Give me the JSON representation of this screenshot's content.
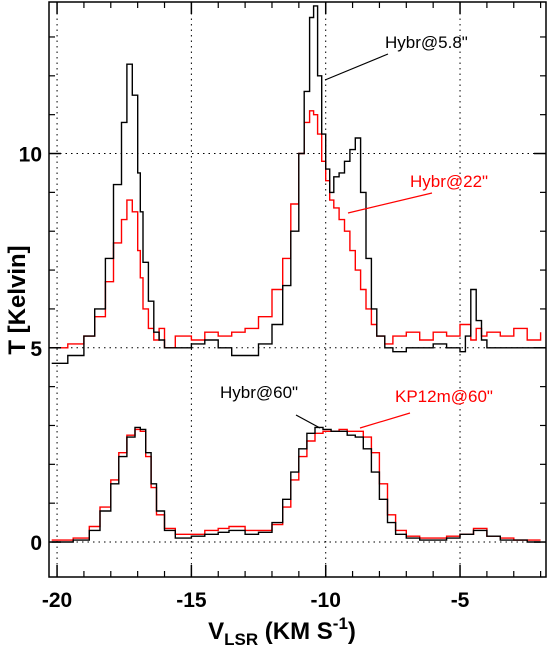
{
  "chart_data": {
    "type": "line",
    "title": "",
    "xlabel": {
      "main": "V",
      "sub": "LSR",
      "rest": " (KM S",
      "sup": "-1",
      "close": ")"
    },
    "ylabel": "T [Kelvin]",
    "xlim": [
      -20.3,
      -1.8
    ],
    "ylim": [
      -0.9,
      13.9
    ],
    "x_ticks": [
      -20,
      -15,
      -10,
      -5
    ],
    "x_tick_labels": [
      "-20",
      "-15",
      "-10",
      "-5"
    ],
    "y_ticks": [
      0,
      5,
      10
    ],
    "y_tick_labels": [
      "0",
      "5",
      "10"
    ],
    "grid": "dotted",
    "plot_style": "step",
    "annotations": [
      {
        "text": "Hybr@5.8\"",
        "color": "#000000"
      },
      {
        "text": "Hybr@22\"",
        "color": "#ff0000"
      },
      {
        "text": "Hybr@60\"",
        "color": "#000000"
      },
      {
        "text": "KP12m@60\"",
        "color": "#ff0000"
      }
    ],
    "series": [
      {
        "color": "#000000",
        "x": [
          -20.2,
          -19.6,
          -19.0,
          -18.6,
          -18.2,
          -17.9,
          -17.6,
          -17.4,
          -17.2,
          -17.0,
          -16.9,
          -16.8,
          -16.6,
          -16.4,
          -16.2,
          -16.0,
          -15.6,
          -15.0,
          -14.5,
          -14.0,
          -13.5,
          -13.0,
          -12.5,
          -12.0,
          -11.6,
          -11.3,
          -11.0,
          -10.8,
          -10.6,
          -10.45,
          -10.3,
          -10.15,
          -10.0,
          -9.85,
          -9.7,
          -9.5,
          -9.3,
          -9.1,
          -8.9,
          -8.7,
          -8.5,
          -8.3,
          -8.1,
          -7.8,
          -7.5,
          -7.0,
          -6.5,
          -6.0,
          -5.5,
          -5.0,
          -4.8,
          -4.6,
          -4.4,
          -4.2,
          -4.0,
          -3.5,
          -3.0,
          -2.5,
          -2.0
        ],
        "y": [
          4.6,
          4.8,
          5.3,
          6.0,
          7.3,
          9.2,
          10.8,
          12.3,
          11.5,
          9.5,
          8.5,
          7.2,
          6.2,
          5.4,
          5.2,
          5.0,
          5.0,
          5.1,
          5.2,
          5.0,
          4.8,
          4.8,
          5.1,
          5.6,
          6.6,
          8.0,
          10.0,
          11.6,
          13.5,
          13.8,
          12.0,
          10.5,
          9.6,
          9.0,
          9.4,
          9.5,
          9.8,
          10.1,
          10.4,
          9.0,
          7.3,
          6.0,
          5.3,
          5.0,
          4.9,
          5.0,
          5.0,
          5.1,
          5.0,
          4.9,
          5.3,
          6.5,
          5.7,
          5.2,
          5.0,
          5.0,
          5.0,
          5.0,
          5.0
        ]
      },
      {
        "color": "#ff0000",
        "x": [
          -20.2,
          -19.6,
          -19.0,
          -18.6,
          -18.2,
          -17.9,
          -17.6,
          -17.4,
          -17.2,
          -17.0,
          -16.9,
          -16.8,
          -16.6,
          -16.4,
          -16.2,
          -16.0,
          -15.6,
          -15.0,
          -14.5,
          -14.0,
          -13.5,
          -13.0,
          -12.5,
          -12.0,
          -11.6,
          -11.3,
          -11.0,
          -10.8,
          -10.6,
          -10.45,
          -10.3,
          -10.15,
          -10.0,
          -9.85,
          -9.7,
          -9.5,
          -9.3,
          -9.1,
          -8.9,
          -8.7,
          -8.5,
          -8.3,
          -8.1,
          -7.8,
          -7.5,
          -7.0,
          -6.5,
          -6.0,
          -5.5,
          -5.0,
          -4.8,
          -4.6,
          -4.4,
          -4.2,
          -4.0,
          -3.5,
          -3.0,
          -2.5,
          -2.0
        ],
        "y": [
          5.0,
          5.1,
          5.3,
          5.8,
          6.7,
          7.7,
          8.3,
          8.8,
          8.5,
          7.5,
          6.8,
          6.0,
          5.5,
          5.2,
          5.5,
          5.0,
          5.3,
          5.2,
          5.4,
          5.3,
          5.4,
          5.5,
          5.8,
          6.5,
          7.3,
          8.7,
          10.0,
          10.8,
          11.1,
          11.0,
          10.5,
          9.8,
          9.3,
          8.8,
          8.6,
          8.3,
          8.0,
          7.5,
          7.0,
          6.5,
          6.0,
          5.6,
          5.3,
          5.1,
          5.3,
          5.4,
          5.2,
          5.4,
          5.3,
          5.6,
          5.6,
          5.2,
          5.5,
          5.3,
          5.4,
          5.3,
          5.5,
          5.2,
          5.4
        ]
      },
      {
        "color": "#000000",
        "x": [
          -20.2,
          -19.4,
          -18.8,
          -18.4,
          -18.0,
          -17.7,
          -17.4,
          -17.1,
          -16.9,
          -16.7,
          -16.5,
          -16.3,
          -16.0,
          -15.6,
          -15.0,
          -14.5,
          -14.0,
          -13.6,
          -13.0,
          -12.5,
          -12.0,
          -11.6,
          -11.3,
          -11.0,
          -10.7,
          -10.4,
          -10.1,
          -9.8,
          -9.5,
          -9.2,
          -8.9,
          -8.6,
          -8.3,
          -8.0,
          -7.7,
          -7.4,
          -7.0,
          -6.5,
          -6.0,
          -5.5,
          -5.0,
          -4.5,
          -4.0,
          -3.5,
          -3.0,
          -2.5,
          -2.0
        ],
        "y": [
          0.0,
          0.05,
          0.3,
          0.8,
          1.5,
          2.2,
          2.7,
          2.95,
          2.9,
          2.3,
          1.5,
          0.8,
          0.3,
          0.1,
          0.15,
          0.2,
          0.25,
          0.3,
          0.2,
          0.25,
          0.5,
          1.1,
          1.8,
          2.4,
          2.8,
          2.95,
          2.9,
          2.85,
          2.85,
          2.75,
          2.7,
          2.4,
          1.8,
          1.1,
          0.5,
          0.2,
          0.1,
          0.05,
          0.05,
          0.1,
          0.2,
          0.3,
          0.15,
          0.05,
          0.05,
          0.0,
          0.0
        ]
      },
      {
        "color": "#ff0000",
        "x": [
          -20.2,
          -19.4,
          -18.8,
          -18.4,
          -18.0,
          -17.7,
          -17.4,
          -17.1,
          -16.9,
          -16.7,
          -16.5,
          -16.3,
          -16.0,
          -15.6,
          -15.0,
          -14.5,
          -14.0,
          -13.6,
          -13.0,
          -12.5,
          -12.0,
          -11.6,
          -11.3,
          -11.0,
          -10.7,
          -10.4,
          -10.1,
          -9.8,
          -9.5,
          -9.2,
          -8.9,
          -8.6,
          -8.3,
          -8.0,
          -7.7,
          -7.4,
          -7.0,
          -6.5,
          -6.0,
          -5.5,
          -5.0,
          -4.5,
          -4.0,
          -3.5,
          -3.0,
          -2.5,
          -2.0
        ],
        "y": [
          0.05,
          0.1,
          0.4,
          0.9,
          1.6,
          2.3,
          2.75,
          2.9,
          2.85,
          2.2,
          1.4,
          0.7,
          0.35,
          0.2,
          0.2,
          0.3,
          0.35,
          0.4,
          0.3,
          0.3,
          0.45,
          0.9,
          1.6,
          2.2,
          2.6,
          2.8,
          2.85,
          2.85,
          2.9,
          2.85,
          2.85,
          2.7,
          2.3,
          1.5,
          0.7,
          0.3,
          0.15,
          0.1,
          0.1,
          0.15,
          0.2,
          0.35,
          0.15,
          0.1,
          0.05,
          0.05,
          0.05
        ]
      }
    ]
  }
}
